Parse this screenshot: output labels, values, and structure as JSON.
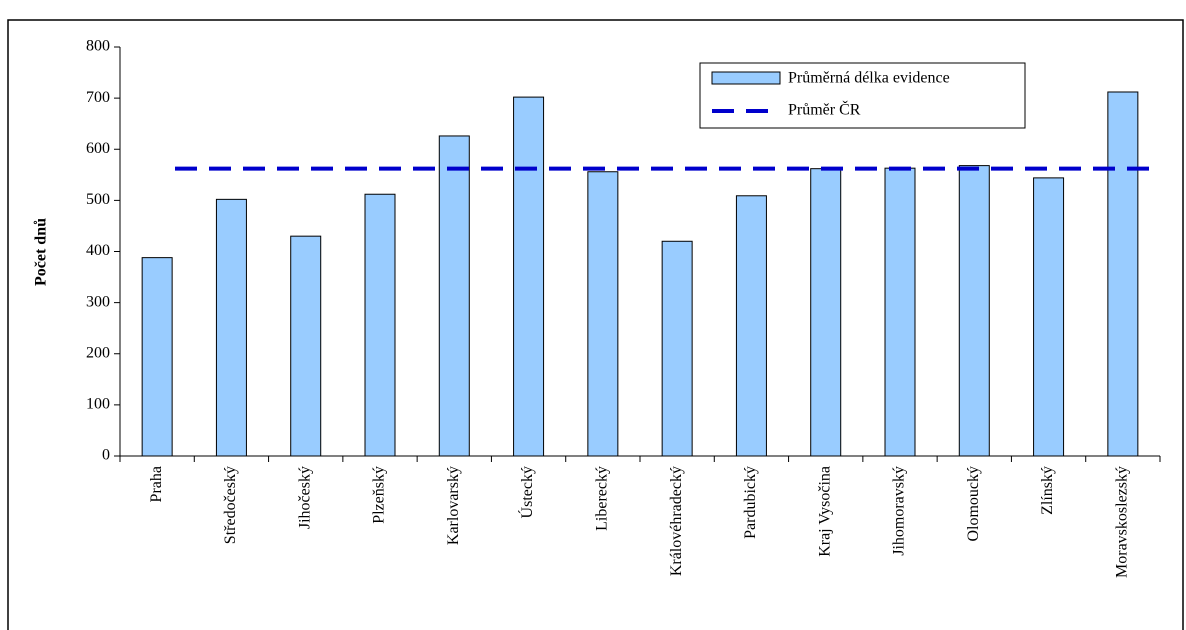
{
  "chart_data": {
    "type": "bar",
    "y_label": "Počet dnů",
    "categories": [
      "Praha",
      "Středočeský",
      "Jihočeský",
      "Plzeňský",
      "Karlovarský",
      "Ústecký",
      "Liberecký",
      "Královéhradecký",
      "Pardubický",
      "Kraj Vysočina",
      "Jihomoravský",
      "Olomoucký",
      "Zlínský",
      "Moravskoslezský"
    ],
    "series": [
      {
        "name": "Průměrná délka evidence",
        "color": "#99ccff",
        "values": [
          388,
          502,
          430,
          512,
          626,
          702,
          556,
          420,
          509,
          562,
          563,
          568,
          544,
          712
        ]
      }
    ],
    "reference_line": {
      "name": "Průměr ČR",
      "color": "#0000cc",
      "value": 562
    },
    "ylim": [
      0,
      800
    ],
    "yticks": [
      0,
      100,
      200,
      300,
      400,
      500,
      600,
      700,
      800
    ],
    "legend": "top-right"
  }
}
